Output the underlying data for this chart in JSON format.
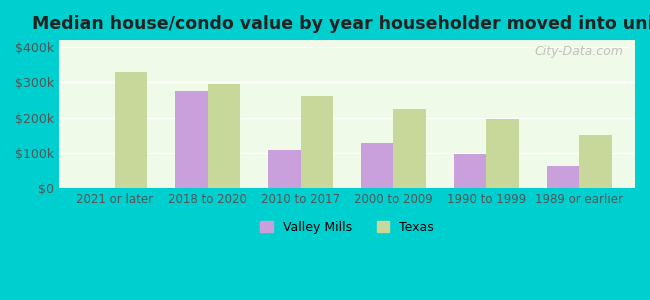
{
  "title": "Median house/condo value by year householder moved into unit",
  "categories": [
    "2021 or later",
    "2018 to 2020",
    "2010 to 2017",
    "2000 to 2009",
    "1990 to 1999",
    "1989 or earlier"
  ],
  "valley_mills": [
    null,
    275000,
    108000,
    130000,
    97000,
    65000
  ],
  "texas": [
    330000,
    295000,
    262000,
    225000,
    198000,
    152000
  ],
  "valley_mills_color": "#c9a0dc",
  "texas_color": "#c8d89a",
  "background_color": "#f0fae8",
  "outer_background": "#00cfcf",
  "ylabel_ticks": [
    "$0",
    "$100k",
    "$200k",
    "$300k",
    "$400k"
  ],
  "ylabel_values": [
    0,
    100000,
    200000,
    300000,
    400000
  ],
  "ylim": [
    0,
    420000
  ],
  "bar_width": 0.35,
  "legend_valley_mills": "Valley Mills",
  "legend_texas": "Texas",
  "watermark": "City-Data.com"
}
